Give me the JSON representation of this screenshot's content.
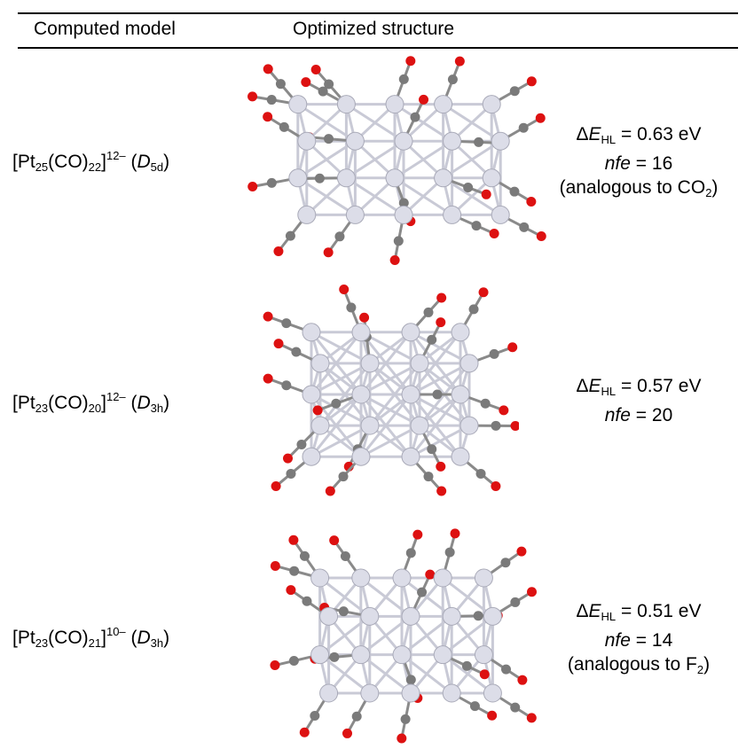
{
  "header": {
    "col1": "Computed model",
    "col2": "Optimized structure"
  },
  "rows": [
    {
      "formula": {
        "open": "[Pt",
        "n_pt": "25",
        "mid": "(CO)",
        "n_co": "22",
        "close": "]",
        "charge": "12–",
        "sym_open": " (",
        "sym_letter": "D",
        "sym_sub": "5d",
        "sym_close": ")"
      },
      "delta_prefix": "Δ",
      "delta_E": "E",
      "delta_sub": "HL",
      "delta_value": " = 0.63 eV",
      "nfe_label": "nfe",
      "nfe_value": " = 16",
      "analogy_pre": "(analogous to CO",
      "analogy_sub": "2",
      "analogy_post": ")",
      "structure_icon": "pt25-cluster-image"
    },
    {
      "formula": {
        "open": "[Pt",
        "n_pt": "23",
        "mid": "(CO)",
        "n_co": "20",
        "close": "]",
        "charge": "12–",
        "sym_open": " (",
        "sym_letter": "D",
        "sym_sub": "3h",
        "sym_close": ")"
      },
      "delta_prefix": "Δ",
      "delta_E": "E",
      "delta_sub": "HL",
      "delta_value": " = 0.57 eV",
      "nfe_label": "nfe",
      "nfe_value": " = 20",
      "structure_icon": "pt23-co20-cluster-image"
    },
    {
      "formula": {
        "open": "[Pt",
        "n_pt": "23",
        "mid": "(CO)",
        "n_co": "21",
        "close": "]",
        "charge": "10–",
        "sym_open": " (",
        "sym_letter": "D",
        "sym_sub": "3h",
        "sym_close": ")"
      },
      "delta_prefix": "Δ",
      "delta_E": "E",
      "delta_sub": "HL",
      "delta_value": " = 0.51 eV",
      "nfe_label": "nfe",
      "nfe_value": " = 14",
      "analogy_pre": "(analogous to F",
      "analogy_sub": "2",
      "analogy_post": ")",
      "structure_icon": "pt23-co21-cluster-image"
    }
  ],
  "colors": {
    "platinum": "#dcdde8",
    "carbon": "#7a7a7a",
    "oxygen": "#dd1111",
    "bond": "#c9cad6"
  }
}
